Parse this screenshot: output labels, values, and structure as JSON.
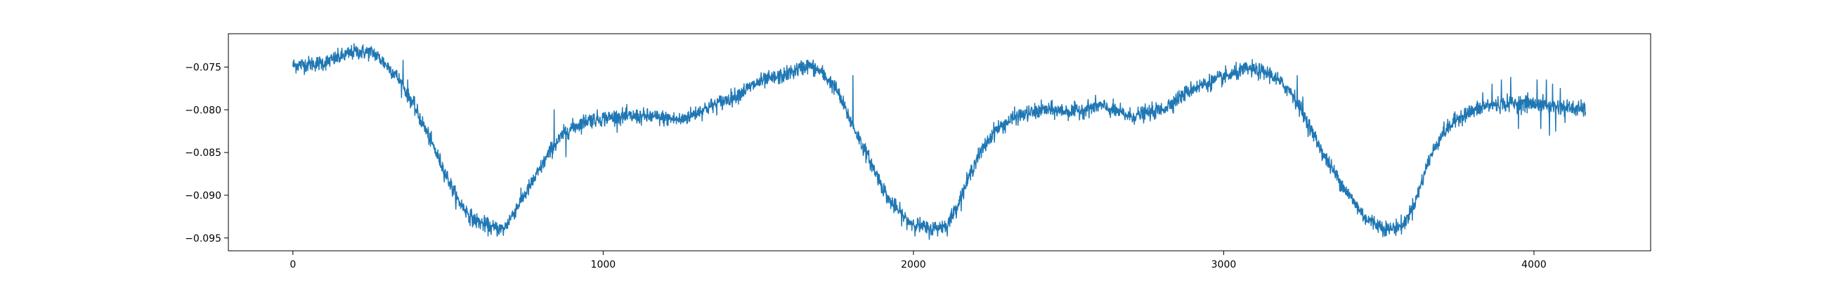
{
  "chart_data": {
    "type": "line",
    "title": "",
    "xlabel": "",
    "ylabel": "",
    "grid": false,
    "xlim": [
      -208,
      4376
    ],
    "ylim": [
      -0.0965,
      -0.0711
    ],
    "x_ticks": [
      0,
      1000,
      2000,
      3000,
      4000
    ],
    "x_tick_labels": [
      "0",
      "1000",
      "2000",
      "3000",
      "4000"
    ],
    "y_ticks": [
      -0.075,
      -0.08,
      -0.085,
      -0.09,
      -0.095
    ],
    "y_tick_labels": [
      "−0.075",
      "−0.080",
      "−0.085",
      "−0.090",
      "−0.095"
    ],
    "series": [
      {
        "color": "#1f77b4",
        "n_points": 4168,
        "x_start": 0,
        "x_step": 1,
        "noise_std": 0.00045,
        "trend_points": [
          [
            0,
            -0.0748
          ],
          [
            100,
            -0.0745
          ],
          [
            200,
            -0.0732
          ],
          [
            260,
            -0.0733
          ],
          [
            330,
            -0.0758
          ],
          [
            380,
            -0.0788
          ],
          [
            430,
            -0.0825
          ],
          [
            480,
            -0.0865
          ],
          [
            530,
            -0.0905
          ],
          [
            580,
            -0.0928
          ],
          [
            640,
            -0.0938
          ],
          [
            680,
            -0.094
          ],
          [
            720,
            -0.0915
          ],
          [
            780,
            -0.088
          ],
          [
            830,
            -0.0848
          ],
          [
            880,
            -0.0825
          ],
          [
            950,
            -0.0812
          ],
          [
            1050,
            -0.0808
          ],
          [
            1150,
            -0.0808
          ],
          [
            1250,
            -0.0812
          ],
          [
            1320,
            -0.08
          ],
          [
            1420,
            -0.0785
          ],
          [
            1500,
            -0.0768
          ],
          [
            1580,
            -0.076
          ],
          [
            1660,
            -0.0748
          ],
          [
            1700,
            -0.0755
          ],
          [
            1750,
            -0.0775
          ],
          [
            1800,
            -0.0815
          ],
          [
            1860,
            -0.086
          ],
          [
            1920,
            -0.0905
          ],
          [
            1980,
            -0.093
          ],
          [
            2050,
            -0.094
          ],
          [
            2110,
            -0.0935
          ],
          [
            2150,
            -0.0905
          ],
          [
            2200,
            -0.086
          ],
          [
            2260,
            -0.0825
          ],
          [
            2330,
            -0.0808
          ],
          [
            2420,
            -0.08
          ],
          [
            2520,
            -0.0802
          ],
          [
            2600,
            -0.0795
          ],
          [
            2700,
            -0.0808
          ],
          [
            2800,
            -0.08
          ],
          [
            2900,
            -0.0775
          ],
          [
            3000,
            -0.0762
          ],
          [
            3080,
            -0.0752
          ],
          [
            3150,
            -0.0758
          ],
          [
            3220,
            -0.078
          ],
          [
            3270,
            -0.0815
          ],
          [
            3330,
            -0.0858
          ],
          [
            3400,
            -0.0898
          ],
          [
            3460,
            -0.0928
          ],
          [
            3530,
            -0.094
          ],
          [
            3580,
            -0.0935
          ],
          [
            3620,
            -0.0905
          ],
          [
            3660,
            -0.086
          ],
          [
            3700,
            -0.083
          ],
          [
            3760,
            -0.0808
          ],
          [
            3850,
            -0.0795
          ],
          [
            3950,
            -0.0792
          ],
          [
            4050,
            -0.0795
          ],
          [
            4167,
            -0.08
          ]
        ],
        "spikes": [
          [
            355,
            -0.0742
          ],
          [
            370,
            -0.0765
          ],
          [
            842,
            -0.08
          ],
          [
            870,
            -0.0825
          ],
          [
            880,
            -0.0855
          ],
          [
            1805,
            -0.076
          ],
          [
            3237,
            -0.076
          ],
          [
            3255,
            -0.0785
          ],
          [
            3835,
            -0.078
          ],
          [
            3865,
            -0.077
          ],
          [
            3895,
            -0.0765
          ],
          [
            3925,
            -0.0762
          ],
          [
            3950,
            -0.0822
          ],
          [
            3980,
            -0.078
          ],
          [
            4010,
            -0.0765
          ],
          [
            4022,
            -0.0822
          ],
          [
            4040,
            -0.0765
          ],
          [
            4050,
            -0.083
          ],
          [
            4060,
            -0.077
          ],
          [
            4070,
            -0.0825
          ],
          [
            4085,
            -0.0775
          ],
          [
            4100,
            -0.0815
          ],
          [
            4130,
            -0.0805
          ],
          [
            4150,
            -0.08
          ]
        ]
      }
    ]
  }
}
